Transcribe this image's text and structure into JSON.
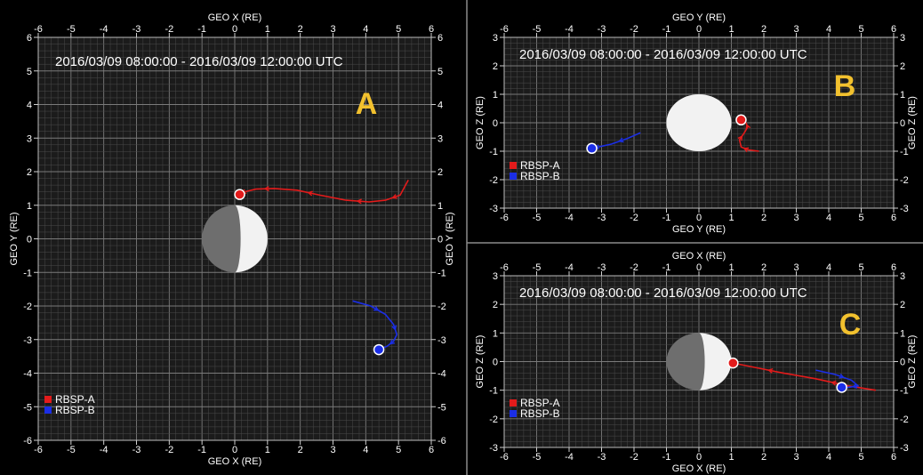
{
  "time_range": "2016/03/09 08:00:00 - 2016/03/09 12:00:00 UTC",
  "colors": {
    "background": "#000000",
    "plot_bg": "#1b1b1b",
    "grid_minor": "#4a4a4a",
    "grid_major": "#7a7a7a",
    "text": "#ffffff",
    "panel_letter": "#f2c12e",
    "rbsp_a": "#e31b1b",
    "rbsp_b": "#1b2ee6",
    "earth_day": "#f2f2f2",
    "earth_night": "#6e6e6e"
  },
  "legend": [
    {
      "name": "RBSP-A",
      "color": "#e31b1b"
    },
    {
      "name": "RBSP-B",
      "color": "#1b2ee6"
    }
  ],
  "chart_data": [
    {
      "type": "scatter",
      "panel": "A",
      "xlabel": "GEO X (RE)",
      "ylabel": "GEO Y (RE)",
      "xlim": [
        -6,
        6
      ],
      "ylim": [
        -6,
        6
      ],
      "xticks": [
        -6,
        -5,
        -4,
        -3,
        -2,
        -1,
        0,
        1,
        2,
        3,
        4,
        5,
        6
      ],
      "yticks": [
        -6,
        -5,
        -4,
        -3,
        -2,
        -1,
        0,
        1,
        2,
        3,
        4,
        5,
        6
      ],
      "grid": true,
      "earth": "half-lit-right",
      "legend_position": "bottom-left",
      "series": [
        {
          "name": "RBSP-A",
          "x": [
            5.3,
            5.05,
            4.6,
            4.1,
            3.4,
            2.6,
            1.9,
            1.2,
            0.65,
            0.3,
            0.15
          ],
          "y": [
            1.75,
            1.3,
            1.15,
            1.1,
            1.15,
            1.3,
            1.45,
            1.5,
            1.48,
            1.4,
            1.32
          ]
        },
        {
          "name": "RBSP-B",
          "x": [
            3.6,
            4.15,
            4.6,
            4.85,
            4.95,
            4.85,
            4.65,
            4.4
          ],
          "y": [
            -1.85,
            -2.0,
            -2.25,
            -2.55,
            -2.85,
            -3.05,
            -3.2,
            -3.3
          ]
        }
      ]
    },
    {
      "type": "scatter",
      "panel": "B",
      "xlabel": "GEO Y (RE)",
      "ylabel": "GEO Z (RE)",
      "xlim": [
        -6,
        6
      ],
      "ylim": [
        -3,
        3
      ],
      "xticks": [
        -6,
        -5,
        -4,
        -3,
        -2,
        -1,
        0,
        1,
        2,
        3,
        4,
        5,
        6
      ],
      "yticks": [
        -3,
        -2,
        -1,
        0,
        1,
        2,
        3
      ],
      "grid": true,
      "earth": "full-lit",
      "legend_position": "left",
      "series": [
        {
          "name": "RBSP-A",
          "x": [
            1.85,
            1.5,
            1.3,
            1.25,
            1.4,
            1.5,
            1.45,
            1.3
          ],
          "y": [
            -1.0,
            -0.95,
            -0.85,
            -0.6,
            -0.35,
            -0.15,
            0.0,
            0.1
          ]
        },
        {
          "name": "RBSP-B",
          "x": [
            -1.8,
            -2.2,
            -2.7,
            -3.1,
            -3.3
          ],
          "y": [
            -0.35,
            -0.55,
            -0.75,
            -0.85,
            -0.9
          ]
        }
      ]
    },
    {
      "type": "scatter",
      "panel": "C",
      "xlabel": "GEO X (RE)",
      "ylabel": "GEO Z (RE)",
      "xlim": [
        -6,
        6
      ],
      "ylim": [
        -3,
        3
      ],
      "xticks": [
        -6,
        -5,
        -4,
        -3,
        -2,
        -1,
        0,
        1,
        2,
        3,
        4,
        5,
        6
      ],
      "yticks": [
        -3,
        -2,
        -1,
        0,
        1,
        2,
        3
      ],
      "grid": true,
      "earth": "half-lit-right",
      "legend_position": "bottom-left",
      "series": [
        {
          "name": "RBSP-A",
          "x": [
            5.45,
            4.6,
            3.6,
            2.6,
            1.7,
            1.05
          ],
          "y": [
            -1.0,
            -0.85,
            -0.6,
            -0.4,
            -0.2,
            -0.05
          ]
        },
        {
          "name": "RBSP-B",
          "x": [
            3.6,
            4.2,
            4.7,
            4.9,
            4.6,
            4.4
          ],
          "y": [
            -0.3,
            -0.45,
            -0.65,
            -0.85,
            -0.9,
            -0.9
          ]
        }
      ]
    }
  ]
}
